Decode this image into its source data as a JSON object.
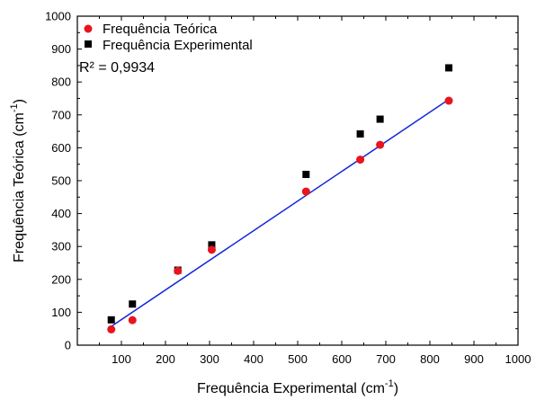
{
  "chart_data": {
    "type": "scatter",
    "xlabel": "Frequência Experimental (cm",
    "xlabel_sup": "-1",
    "xlabel_close": ")",
    "ylabel": "Frequência Teórica (cm",
    "ylabel_sup": "-1",
    "ylabel_close": ")",
    "xlim": [
      0,
      1000
    ],
    "ylim": [
      0,
      1000
    ],
    "xticks": [
      100,
      200,
      300,
      400,
      500,
      600,
      700,
      800,
      900,
      1000
    ],
    "yticks": [
      0,
      100,
      200,
      300,
      400,
      500,
      600,
      700,
      800,
      900,
      1000
    ],
    "grid": false,
    "legend_position": "top-left",
    "annotation": "R² = 0,9934",
    "series": [
      {
        "name": "Frequência Teórica",
        "marker": "circle",
        "color": "#e8141e",
        "x": [
          77,
          125,
          228,
          305,
          519,
          642,
          687,
          843
        ],
        "y": [
          48,
          76,
          226,
          290,
          467,
          564,
          609,
          743
        ]
      },
      {
        "name": "Frequência Experimental",
        "marker": "square",
        "color": "#000000",
        "x": [
          77,
          125,
          228,
          305,
          519,
          642,
          687,
          843
        ],
        "y": [
          77,
          125,
          228,
          305,
          519,
          642,
          687,
          843
        ]
      }
    ],
    "fit_line": {
      "color": "#1428d8",
      "x": [
        77,
        843
      ],
      "y": [
        57,
        747
      ]
    }
  }
}
